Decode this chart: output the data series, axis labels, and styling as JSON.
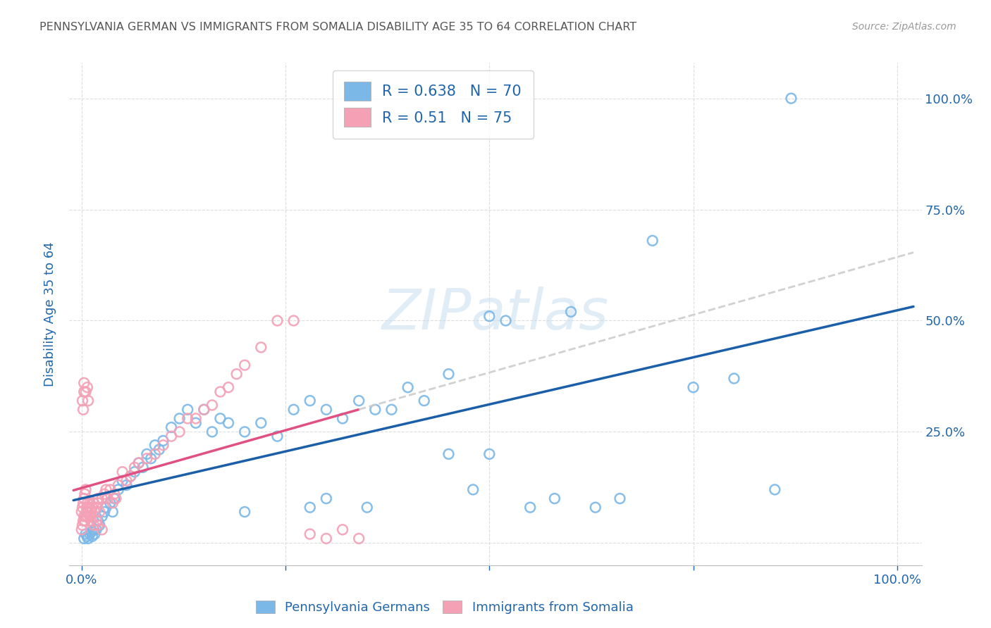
{
  "title": "PENNSYLVANIA GERMAN VS IMMIGRANTS FROM SOMALIA DISABILITY AGE 35 TO 64 CORRELATION CHART",
  "source": "Source: ZipAtlas.com",
  "ylabel": "Disability Age 35 to 64",
  "legend_label_1": "Pennsylvania Germans",
  "legend_label_2": "Immigrants from Somalia",
  "R1": 0.638,
  "N1": 70,
  "R2": 0.51,
  "N2": 75,
  "color_blue": "#7bb8e8",
  "color_blue_line": "#1a5fa8",
  "color_pink": "#f4a0b5",
  "color_pink_line": "#e05080",
  "watermark_color": "#c8dff2",
  "title_color": "#555555",
  "axis_label_color": "#2166ac",
  "tick_label_color": "#2166ac",
  "grid_color": "#dddddd",
  "background_color": "#ffffff",
  "blue_x": [
    0.003,
    0.005,
    0.007,
    0.008,
    0.01,
    0.012,
    0.013,
    0.015,
    0.016,
    0.018,
    0.02,
    0.022,
    0.025,
    0.028,
    0.03,
    0.035,
    0.038,
    0.04,
    0.045,
    0.05,
    0.055,
    0.06,
    0.065,
    0.07,
    0.075,
    0.08,
    0.085,
    0.09,
    0.095,
    0.1,
    0.11,
    0.12,
    0.13,
    0.14,
    0.15,
    0.16,
    0.17,
    0.18,
    0.2,
    0.22,
    0.24,
    0.26,
    0.28,
    0.3,
    0.32,
    0.34,
    0.36,
    0.38,
    0.4,
    0.42,
    0.45,
    0.48,
    0.5,
    0.52,
    0.55,
    0.58,
    0.6,
    0.63,
    0.66,
    0.7,
    0.75,
    0.8,
    0.85,
    0.87,
    0.5,
    0.45,
    0.3,
    0.35,
    0.28,
    0.2
  ],
  "blue_y": [
    0.01,
    0.02,
    0.015,
    0.01,
    0.02,
    0.025,
    0.015,
    0.03,
    0.02,
    0.03,
    0.05,
    0.04,
    0.06,
    0.07,
    0.08,
    0.09,
    0.07,
    0.1,
    0.12,
    0.14,
    0.13,
    0.15,
    0.16,
    0.18,
    0.17,
    0.2,
    0.19,
    0.22,
    0.21,
    0.23,
    0.26,
    0.28,
    0.3,
    0.27,
    0.3,
    0.25,
    0.28,
    0.27,
    0.25,
    0.27,
    0.24,
    0.3,
    0.32,
    0.3,
    0.28,
    0.32,
    0.3,
    0.3,
    0.35,
    0.32,
    0.38,
    0.12,
    0.51,
    0.5,
    0.08,
    0.1,
    0.52,
    0.08,
    0.1,
    0.68,
    0.35,
    0.37,
    0.12,
    1.0,
    0.2,
    0.2,
    0.1,
    0.08,
    0.08,
    0.07
  ],
  "pink_x": [
    0.0,
    0.0,
    0.001,
    0.001,
    0.002,
    0.002,
    0.003,
    0.003,
    0.004,
    0.004,
    0.005,
    0.005,
    0.006,
    0.006,
    0.007,
    0.007,
    0.008,
    0.009,
    0.01,
    0.01,
    0.012,
    0.013,
    0.015,
    0.016,
    0.018,
    0.02,
    0.02,
    0.022,
    0.025,
    0.028,
    0.03,
    0.032,
    0.035,
    0.038,
    0.04,
    0.042,
    0.045,
    0.05,
    0.055,
    0.06,
    0.065,
    0.07,
    0.08,
    0.09,
    0.1,
    0.11,
    0.12,
    0.13,
    0.14,
    0.15,
    0.16,
    0.17,
    0.18,
    0.19,
    0.2,
    0.22,
    0.24,
    0.26,
    0.28,
    0.3,
    0.32,
    0.34,
    0.001,
    0.002,
    0.003,
    0.003,
    0.005,
    0.007,
    0.008,
    0.01,
    0.012,
    0.015,
    0.018,
    0.02,
    0.025
  ],
  "pink_y": [
    0.03,
    0.07,
    0.04,
    0.08,
    0.05,
    0.09,
    0.06,
    0.1,
    0.05,
    0.11,
    0.06,
    0.12,
    0.07,
    0.08,
    0.06,
    0.09,
    0.07,
    0.08,
    0.06,
    0.09,
    0.07,
    0.08,
    0.09,
    0.07,
    0.08,
    0.09,
    0.1,
    0.07,
    0.1,
    0.11,
    0.12,
    0.1,
    0.12,
    0.09,
    0.11,
    0.1,
    0.13,
    0.16,
    0.14,
    0.15,
    0.17,
    0.18,
    0.19,
    0.2,
    0.22,
    0.24,
    0.25,
    0.28,
    0.28,
    0.3,
    0.31,
    0.34,
    0.35,
    0.38,
    0.4,
    0.44,
    0.5,
    0.5,
    0.02,
    0.01,
    0.03,
    0.01,
    0.32,
    0.3,
    0.34,
    0.36,
    0.34,
    0.35,
    0.32,
    0.06,
    0.05,
    0.04,
    0.05,
    0.04,
    0.03
  ]
}
